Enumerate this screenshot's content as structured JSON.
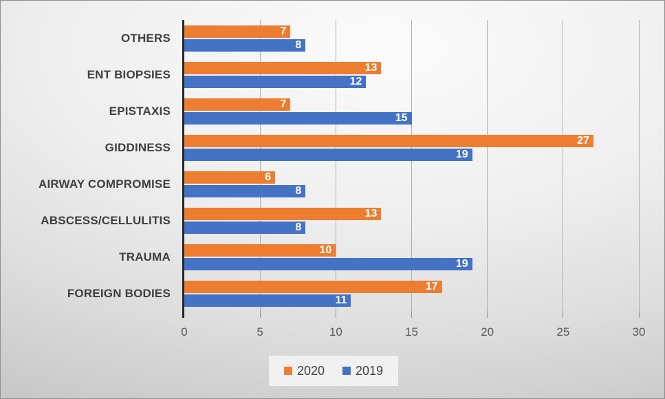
{
  "chart_data": {
    "type": "bar",
    "orientation": "horizontal-grouped",
    "title": "",
    "categories": [
      "OTHERS",
      "ENT BIOPSIES",
      "EPISTAXIS",
      "GIDDINESS",
      "AIRWAY COMPROMISE",
      "ABSCESS/CELLULITIS",
      "TRAUMA",
      "FOREIGN BODIES"
    ],
    "series": [
      {
        "name": "2020",
        "color": "#ED7D31",
        "values": [
          7,
          13,
          7,
          27,
          6,
          13,
          10,
          17
        ]
      },
      {
        "name": "2019",
        "color": "#4472C4",
        "values": [
          8,
          12,
          15,
          19,
          8,
          8,
          19,
          11
        ]
      }
    ],
    "x_axis": {
      "min": 0,
      "max": 30,
      "tick_step": 5,
      "tick_labels": [
        "0",
        "5",
        "10",
        "15",
        "20",
        "25",
        "30"
      ]
    },
    "value_labels_position": "inside-end",
    "grid": true,
    "legend": {
      "position": "bottom",
      "entries": [
        "2020",
        "2019"
      ]
    },
    "colors": {
      "series_2020": "#ED7D31",
      "series_2019": "#4472C4",
      "gridline": "#aeaeae",
      "axis_line": "#262626",
      "category_label": "#3f3f3f",
      "tick_label": "#595959",
      "value_label": "#ffffff",
      "legend_text": "#404040",
      "legend_background": "#f1f1f1"
    }
  }
}
